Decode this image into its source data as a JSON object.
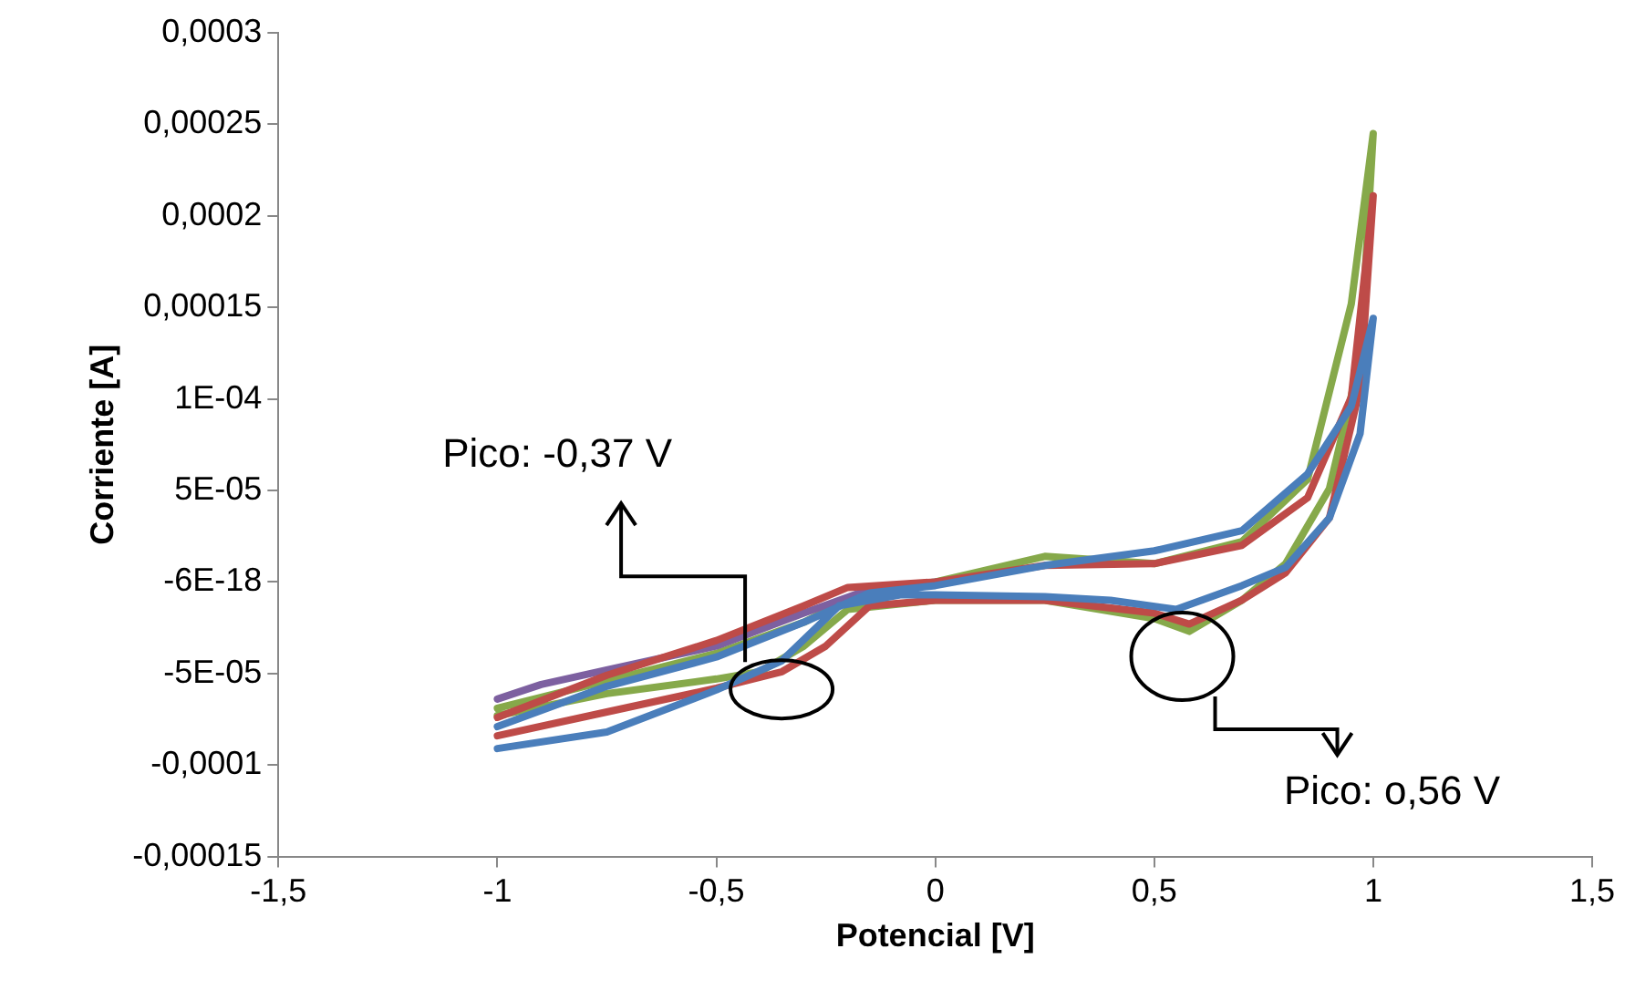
{
  "chart_data": {
    "type": "line",
    "xlabel": "Potencial [V]",
    "ylabel": "Corriente [A]",
    "xlim": [
      -1.5,
      1.5
    ],
    "xticks": [
      {
        "value": -1.5,
        "label": "-1,5"
      },
      {
        "value": -1,
        "label": "-1"
      },
      {
        "value": -0.5,
        "label": "-0,5"
      },
      {
        "value": 0,
        "label": "0"
      },
      {
        "value": 0.5,
        "label": "0,5"
      },
      {
        "value": 1,
        "label": "1"
      },
      {
        "value": 1.5,
        "label": "1,5"
      }
    ],
    "ylim": [
      -0.00015,
      0.0003
    ],
    "yticks": [
      {
        "value": -0.00015,
        "label": "-0,00015"
      },
      {
        "value": -0.0001,
        "label": "-0,0001"
      },
      {
        "value": -5e-05,
        "label": "-5E-05"
      },
      {
        "value": 0,
        "label": "-6E-18"
      },
      {
        "value": 5e-05,
        "label": "5E-05"
      },
      {
        "value": 0.0001,
        "label": "1E-04"
      },
      {
        "value": 0.00015,
        "label": "0,00015"
      },
      {
        "value": 0.0002,
        "label": "0,0002"
      },
      {
        "value": 0.00025,
        "label": "0,00025"
      },
      {
        "value": 0.0003,
        "label": "0,0003"
      }
    ],
    "series": [
      {
        "color": "#4a7ebb",
        "x": [
          -1,
          -0.75,
          -0.5,
          -0.3,
          -0.15,
          0,
          0.25,
          0.5,
          0.7,
          0.85,
          0.95,
          1,
          0.97,
          0.9,
          0.8,
          0.7,
          0.55,
          0.4,
          0.25,
          0,
          -0.08,
          -0.22,
          -0.35,
          -0.5,
          -0.75,
          -1
        ],
        "values": [
          -7.9e-05,
          -5.7e-05,
          -4.1e-05,
          -2.2e-05,
          -6e-06,
          -2e-06,
          9e-06,
          1.7e-05,
          2.8e-05,
          5.9e-05,
          9.6e-05,
          0.000144,
          8.1e-05,
          3.5e-05,
          8e-06,
          -2e-06,
          -1.5e-05,
          -1e-05,
          -8e-06,
          -7e-06,
          -7e-06,
          -1.3e-05,
          -4.3e-05,
          -5.9e-05,
          -8.2e-05,
          -9.1e-05
        ]
      },
      {
        "color": "#be4b48",
        "x": [
          -1,
          -0.75,
          -0.5,
          -0.3,
          -0.2,
          0,
          0.25,
          0.5,
          0.7,
          0.85,
          0.95,
          1,
          0.97,
          0.9,
          0.8,
          0.7,
          0.58,
          0.5,
          0.25,
          0,
          -0.15,
          -0.25,
          -0.35,
          -0.5,
          -0.75,
          -1
        ],
        "values": [
          -7.4e-05,
          -5.1e-05,
          -3.2e-05,
          -1.3e-05,
          -3e-06,
          0,
          9e-06,
          1e-05,
          2e-05,
          4.6e-05,
          0.000101,
          0.000211,
          0.000106,
          3.5e-05,
          5e-06,
          -1e-05,
          -2.3e-05,
          -1.7e-05,
          -1e-05,
          -1e-05,
          -1.3e-05,
          -3.5e-05,
          -4.9e-05,
          -5.8e-05,
          -7.1e-05,
          -8.4e-05
        ]
      },
      {
        "color": "#7d60a0",
        "x": [
          -1,
          -0.9,
          -0.75,
          -0.5,
          -0.3,
          -0.15,
          0
        ],
        "values": [
          -6.4e-05,
          -5.6e-05,
          -4.8e-05,
          -3.5e-05,
          -1.7e-05,
          -4e-06,
          0
        ]
      },
      {
        "color": "#86a94a",
        "x": [
          -1,
          -0.75,
          -0.5,
          -0.3,
          -0.15,
          0,
          0.25,
          0.5,
          0.7,
          0.85,
          0.95,
          1,
          0.97,
          0.9,
          0.8,
          0.7,
          0.58,
          0.5,
          0.25,
          0,
          -0.2,
          -0.3,
          -0.4,
          -0.5,
          -0.75,
          -1
        ],
        "values": [
          -6.9e-05,
          -5.4e-05,
          -3.9e-05,
          -2.2e-05,
          -4e-06,
          0,
          1.4e-05,
          1e-05,
          2.2e-05,
          5.6e-05,
          0.000152,
          0.000245,
          0.000122,
          5.1e-05,
          1e-05,
          -1e-05,
          -2.7e-05,
          -2e-05,
          -1e-05,
          -1e-05,
          -1.5e-05,
          -3.5e-05,
          -4.9e-05,
          -5.3e-05,
          -6.1e-05,
          -7.3e-05
        ]
      }
    ],
    "annotations": [
      "Pico: -0,37 V",
      "Pico: o,56 V"
    ]
  }
}
